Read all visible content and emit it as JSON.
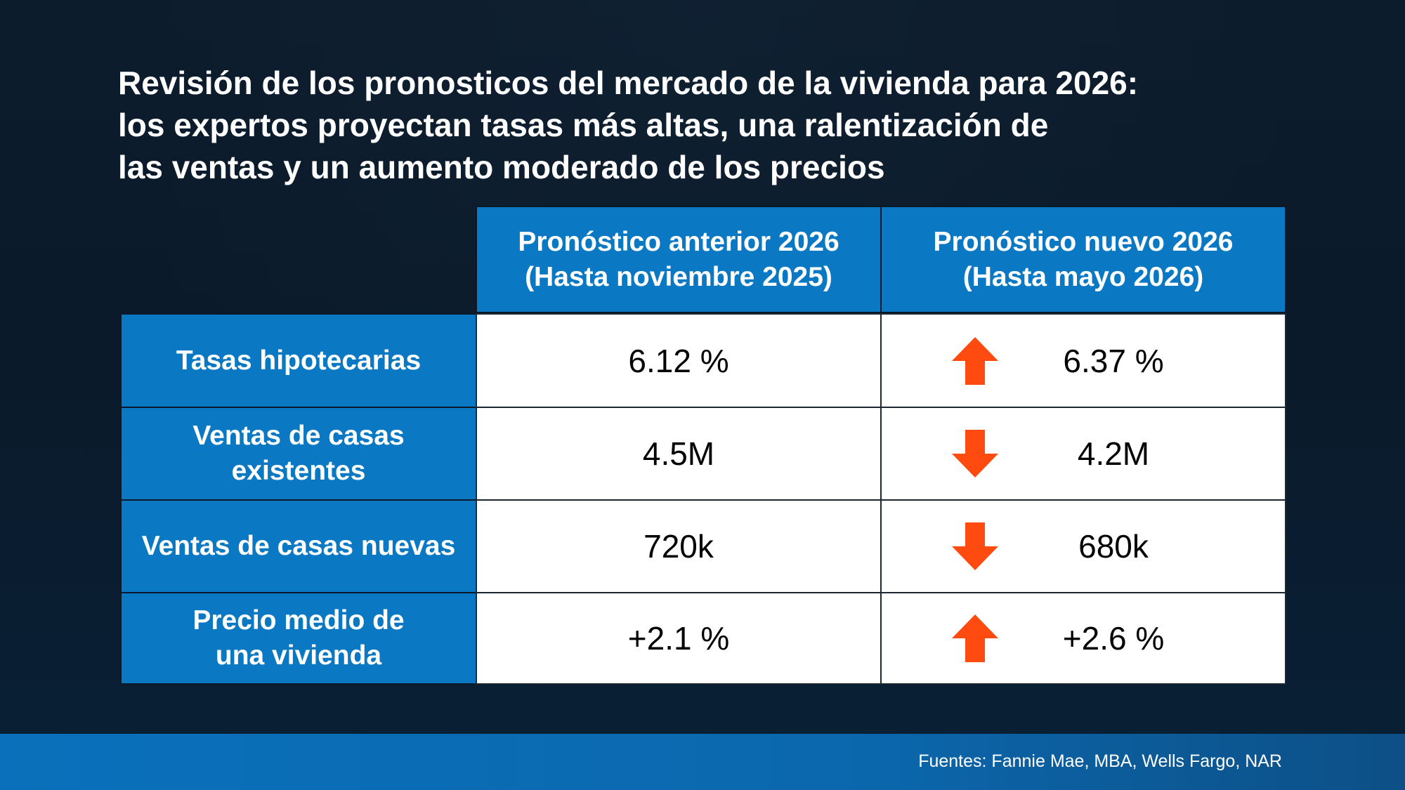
{
  "title": {
    "line1": "Revisión de los pronosticos del mercado de la vivienda para 2026:",
    "line2": "los expertos proyectan tasas más altas, una ralentización de",
    "line3": "las ventas y un aumento moderado de los precios"
  },
  "colors": {
    "header_blue": "#0a78c2",
    "arrow_orange": "#ff4a10",
    "background": "#0b1c2d"
  },
  "chart_data": {
    "type": "table",
    "columns": [
      {
        "line1": "Pronóstico anterior 2026",
        "line2": "(Hasta noviembre 2025)"
      },
      {
        "line1": "Pronóstico nuevo 2026",
        "line2": "(Hasta mayo 2026)"
      }
    ],
    "rows": [
      {
        "label_line1": "Tasas hipotecarias",
        "label_line2": "",
        "previous": "6.12 %",
        "new": "6.37 %",
        "direction": "up"
      },
      {
        "label_line1": "Ventas de casas",
        "label_line2": "existentes",
        "previous": "4.5M",
        "new": "4.2M",
        "direction": "down"
      },
      {
        "label_line1": "Ventas de casas nuevas",
        "label_line2": "",
        "previous": "720k",
        "new": "680k",
        "direction": "down"
      },
      {
        "label_line1": "Precio medio de",
        "label_line2": "una vivienda",
        "previous": "+2.1 %",
        "new": "+2.6 %",
        "direction": "up"
      }
    ]
  },
  "footer": {
    "source": "Fuentes: Fannie Mae, MBA, Wells Fargo, NAR"
  }
}
